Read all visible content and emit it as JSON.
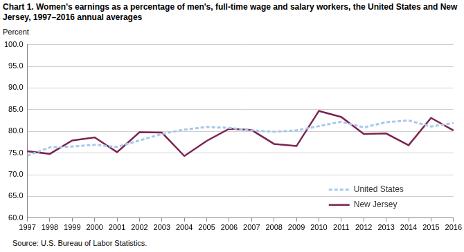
{
  "chart_data": {
    "type": "line",
    "title": "Chart 1. Women's earnings as a percentage of men's, full-time wage and salary workers, the United States and New Jersey, 1997–2016 annual averages",
    "ylabel": "Percent",
    "note": "Source: U.S. Bureau of Labor Statistics.",
    "categories": [
      "1997",
      "1998",
      "1999",
      "2000",
      "2001",
      "2002",
      "2003",
      "2004",
      "2005",
      "2006",
      "2007",
      "2008",
      "2009",
      "2010",
      "2011",
      "2012",
      "2013",
      "2014",
      "2015",
      "2016"
    ],
    "series": [
      {
        "name": "United States",
        "color": "#a6c8ec",
        "line_style": "dashed",
        "values": [
          74.4,
          76.3,
          76.5,
          76.9,
          76.4,
          77.9,
          79.4,
          80.4,
          81.0,
          80.8,
          80.2,
          79.9,
          80.2,
          81.2,
          82.2,
          80.9,
          82.1,
          82.5,
          81.1,
          81.9
        ]
      },
      {
        "name": "New Jersey",
        "color": "#7b2350",
        "line_style": "solid",
        "values": [
          75.4,
          74.8,
          77.9,
          78.6,
          75.2,
          79.8,
          79.7,
          74.3,
          77.8,
          80.6,
          80.3,
          77.1,
          76.6,
          84.7,
          83.3,
          79.4,
          79.5,
          76.8,
          83.1,
          80.2
        ]
      }
    ],
    "ylim": [
      60,
      100
    ],
    "yticks": [
      {
        "value": 60,
        "label": "60.0"
      },
      {
        "value": 65,
        "label": "65.0"
      },
      {
        "value": 70,
        "label": "70.0"
      },
      {
        "value": 75,
        "label": "75.0"
      },
      {
        "value": 80,
        "label": "80.0"
      },
      {
        "value": 85,
        "label": "85.0"
      },
      {
        "value": 90,
        "label": "90.0"
      },
      {
        "value": 95,
        "label": "95.0"
      },
      {
        "value": 100,
        "label": "100.0"
      }
    ],
    "grid": true,
    "legend": "lower right"
  }
}
